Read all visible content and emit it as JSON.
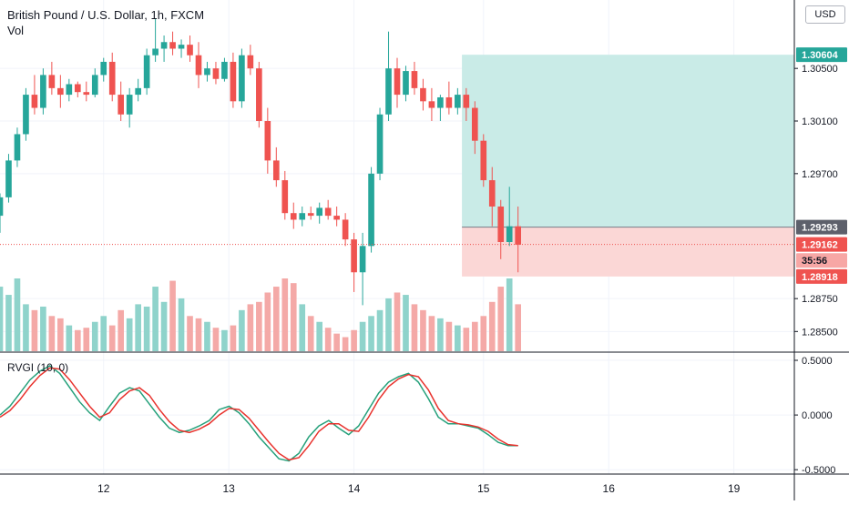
{
  "header": {
    "title": "British Pound / U.S. Dollar, 1h, FXCM",
    "volume_label": "Vol",
    "currency_button": "USD"
  },
  "indicator": {
    "label": "RVGI (10, 0)"
  },
  "colors": {
    "up": "#26a69a",
    "down": "#ef5350",
    "vol_up": "#8fd3cb",
    "vol_down": "#f4a9a7",
    "rvgi": "#26a17b",
    "signal": "#e8322d",
    "target_zone": "#c9ebe7",
    "stop_zone": "#fbd7d6",
    "grid": "#f0f3fa",
    "axis": "#131722"
  },
  "chart_data": [
    {
      "type": "candlestick",
      "title": "British Pound / U.S. Dollar, 1h, FXCM",
      "ylim": [
        1.2835,
        1.3102
      ],
      "y_ticks": [
        "1.28500",
        "1.28750",
        "1.29700",
        "1.30100",
        "1.30500"
      ],
      "y_tick_values": [
        1.285,
        1.2875,
        1.297,
        1.301,
        1.305
      ],
      "x_ticks": [
        "12",
        "13",
        "14",
        "15",
        "16",
        "19"
      ],
      "x_tick_index": [
        12,
        26.5,
        41,
        56,
        70.5,
        85
      ],
      "price_labels": [
        {
          "label": "1.30604",
          "value": 1.30604,
          "kind": "target"
        },
        {
          "label": "1.29293",
          "value": 1.29293,
          "kind": "entry"
        },
        {
          "label": "1.29162",
          "value": 1.29162,
          "kind": "last"
        },
        {
          "label": "35:56",
          "value": 1.2904,
          "kind": "countdown"
        },
        {
          "label": "1.28918",
          "value": 1.28918,
          "kind": "stop"
        }
      ],
      "position": {
        "start_index": 53.5,
        "end_index": 90,
        "entry": 1.29293,
        "target": 1.30604,
        "stop": 1.28918,
        "last": 1.29162
      },
      "candles": [
        [
          1.2938,
          1.2955,
          1.2925,
          1.2952
        ],
        [
          1.2952,
          1.2985,
          1.2948,
          1.298
        ],
        [
          1.298,
          1.3005,
          1.2975,
          1.3
        ],
        [
          1.3,
          1.3035,
          1.2995,
          1.303
        ],
        [
          1.303,
          1.3045,
          1.3015,
          1.302
        ],
        [
          1.302,
          1.305,
          1.3015,
          1.3045
        ],
        [
          1.3045,
          1.3055,
          1.303,
          1.3035
        ],
        [
          1.3035,
          1.3045,
          1.302,
          1.303
        ],
        [
          1.303,
          1.3042,
          1.3025,
          1.3038
        ],
        [
          1.3038,
          1.304,
          1.3028,
          1.3032
        ],
        [
          1.3032,
          1.304,
          1.3025,
          1.303
        ],
        [
          1.303,
          1.305,
          1.3028,
          1.3045
        ],
        [
          1.3045,
          1.3058,
          1.304,
          1.3055
        ],
        [
          1.3055,
          1.3062,
          1.3025,
          1.303
        ],
        [
          1.303,
          1.304,
          1.301,
          1.3015
        ],
        [
          1.3015,
          1.3035,
          1.3005,
          1.303
        ],
        [
          1.303,
          1.3042,
          1.3025,
          1.3035
        ],
        [
          1.3035,
          1.3065,
          1.303,
          1.306
        ],
        [
          1.306,
          1.3088,
          1.3055,
          1.3065
        ],
        [
          1.3065,
          1.3075,
          1.3055,
          1.307
        ],
        [
          1.307,
          1.3078,
          1.306,
          1.3065
        ],
        [
          1.3065,
          1.3072,
          1.3058,
          1.3068
        ],
        [
          1.3068,
          1.3075,
          1.3055,
          1.306
        ],
        [
          1.306,
          1.307,
          1.3035,
          1.3045
        ],
        [
          1.3045,
          1.3055,
          1.304,
          1.305
        ],
        [
          1.305,
          1.3055,
          1.3038,
          1.3042
        ],
        [
          1.3042,
          1.3058,
          1.304,
          1.3055
        ],
        [
          1.3055,
          1.3062,
          1.302,
          1.3025
        ],
        [
          1.3025,
          1.3065,
          1.302,
          1.306
        ],
        [
          1.306,
          1.3068,
          1.3045,
          1.305
        ],
        [
          1.305,
          1.3055,
          1.3005,
          1.301
        ],
        [
          1.301,
          1.302,
          1.297,
          1.298
        ],
        [
          1.298,
          1.299,
          1.296,
          1.2965
        ],
        [
          1.2965,
          1.2972,
          1.2935,
          1.294
        ],
        [
          1.294,
          1.2948,
          1.2928,
          1.2935
        ],
        [
          1.2935,
          1.2945,
          1.293,
          1.294
        ],
        [
          1.294,
          1.2945,
          1.2935,
          1.2938
        ],
        [
          1.2938,
          1.2948,
          1.2932,
          1.2944
        ],
        [
          1.2944,
          1.295,
          1.2935,
          1.2938
        ],
        [
          1.2938,
          1.2945,
          1.293,
          1.2935
        ],
        [
          1.2935,
          1.294,
          1.2915,
          1.292
        ],
        [
          1.292,
          1.2925,
          1.288,
          1.2895
        ],
        [
          1.2895,
          1.2925,
          1.287,
          1.2915
        ],
        [
          1.2915,
          1.2975,
          1.291,
          1.297
        ],
        [
          1.297,
          1.302,
          1.2965,
          1.3015
        ],
        [
          1.3015,
          1.3078,
          1.301,
          1.305
        ],
        [
          1.305,
          1.3058,
          1.302,
          1.303
        ],
        [
          1.303,
          1.3052,
          1.3025,
          1.3048
        ],
        [
          1.3048,
          1.3055,
          1.303,
          1.3035
        ],
        [
          1.3035,
          1.3042,
          1.3018,
          1.3025
        ],
        [
          1.3025,
          1.3035,
          1.301,
          1.302
        ],
        [
          1.302,
          1.303,
          1.301,
          1.3028
        ],
        [
          1.3028,
          1.304,
          1.3015,
          1.302
        ],
        [
          1.302,
          1.3035,
          1.3015,
          1.303
        ],
        [
          1.303,
          1.3035,
          1.301,
          1.302
        ],
        [
          1.302,
          1.3025,
          1.2985,
          1.2995
        ],
        [
          1.2995,
          1.3,
          1.296,
          1.2965
        ],
        [
          1.2965,
          1.2975,
          1.293,
          1.2945
        ],
        [
          1.2945,
          1.295,
          1.2905,
          1.2918
        ],
        [
          1.2918,
          1.296,
          1.2915,
          1.293
        ],
        [
          1.293,
          1.2945,
          1.2895,
          1.2916
        ]
      ],
      "volume": [
        55,
        48,
        62,
        40,
        35,
        38,
        30,
        28,
        22,
        18,
        20,
        25,
        30,
        22,
        35,
        28,
        40,
        38,
        55,
        42,
        60,
        45,
        30,
        28,
        25,
        20,
        18,
        22,
        35,
        40,
        42,
        50,
        55,
        62,
        58,
        40,
        30,
        25,
        20,
        15,
        12,
        18,
        25,
        30,
        35,
        45,
        50,
        48,
        40,
        35,
        30,
        28,
        25,
        22,
        20,
        25,
        30,
        42,
        55,
        62,
        40
      ],
      "y_ticks_secondary": []
    },
    {
      "type": "line",
      "title": "RVGI (10, 0)",
      "ylim": [
        -0.54,
        0.55
      ],
      "y_ticks": [
        "0.5000",
        "0.0000",
        "-0.5000"
      ],
      "y_tick_values": [
        0.5,
        0.0,
        -0.5
      ],
      "series": [
        {
          "values": [
            0.0,
            0.08,
            0.2,
            0.32,
            0.4,
            0.45,
            0.38,
            0.25,
            0.12,
            0.02,
            -0.05,
            0.08,
            0.2,
            0.25,
            0.22,
            0.1,
            -0.02,
            -0.12,
            -0.16,
            -0.14,
            -0.1,
            -0.05,
            0.05,
            0.08,
            0.02,
            -0.08,
            -0.2,
            -0.3,
            -0.4,
            -0.42,
            -0.35,
            -0.2,
            -0.1,
            -0.05,
            -0.12,
            -0.18,
            -0.1,
            0.05,
            0.2,
            0.3,
            0.35,
            0.38,
            0.3,
            0.15,
            -0.02,
            -0.08,
            -0.08,
            -0.1,
            -0.12,
            -0.18,
            -0.25,
            -0.28,
            -0.28
          ]
        },
        {
          "values": [
            -0.02,
            0.04,
            0.14,
            0.26,
            0.36,
            0.43,
            0.42,
            0.32,
            0.2,
            0.08,
            -0.02,
            0.02,
            0.14,
            0.22,
            0.25,
            0.18,
            0.05,
            -0.06,
            -0.14,
            -0.16,
            -0.13,
            -0.08,
            0.0,
            0.06,
            0.05,
            -0.03,
            -0.14,
            -0.25,
            -0.35,
            -0.41,
            -0.39,
            -0.28,
            -0.15,
            -0.08,
            -0.08,
            -0.14,
            -0.15,
            -0.02,
            0.14,
            0.26,
            0.33,
            0.37,
            0.35,
            0.23,
            0.06,
            -0.05,
            -0.08,
            -0.09,
            -0.11,
            -0.15,
            -0.22,
            -0.27,
            -0.28
          ]
        }
      ]
    }
  ]
}
